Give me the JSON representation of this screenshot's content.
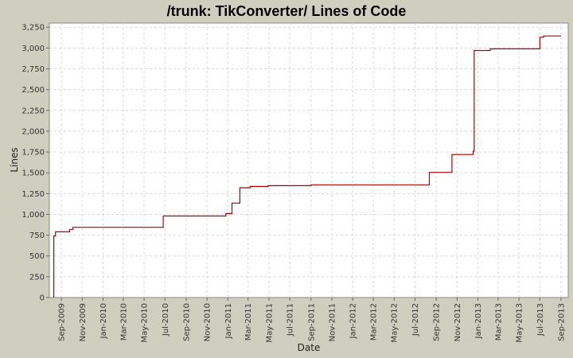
{
  "chart_data": {
    "type": "line",
    "title": "/trunk: TikConverter/ Lines of Code",
    "xlabel": "Date",
    "ylabel": "Lines",
    "ylim": [
      0,
      3300
    ],
    "xlim": [
      "2009-07-28",
      "2013-09-22"
    ],
    "y_ticks": [
      0,
      250,
      500,
      750,
      1000,
      1250,
      1500,
      1750,
      2000,
      2250,
      2500,
      2750,
      3000,
      3250
    ],
    "y_tick_labels": [
      "0",
      "250",
      "500",
      "750",
      "1,000",
      "1,250",
      "1,500",
      "1,750",
      "2,000",
      "2,250",
      "2,500",
      "2,750",
      "3,000",
      "3,250"
    ],
    "x_ticks": [
      "2009-09-01",
      "2009-11-01",
      "2010-01-01",
      "2010-03-01",
      "2010-05-01",
      "2010-07-01",
      "2010-09-01",
      "2010-11-01",
      "2011-01-01",
      "2011-03-01",
      "2011-05-01",
      "2011-07-01",
      "2011-09-01",
      "2011-11-01",
      "2012-01-01",
      "2012-03-01",
      "2012-05-01",
      "2012-07-01",
      "2012-09-01",
      "2012-11-01",
      "2013-01-01",
      "2013-03-01",
      "2013-05-01",
      "2013-07-01",
      "2013-09-01"
    ],
    "x_tick_labels": [
      "Sep-2009",
      "Nov-2009",
      "Jan-2010",
      "Mar-2010",
      "May-2010",
      "Jul-2010",
      "Sep-2010",
      "Nov-2010",
      "Jan-2011",
      "Mar-2011",
      "May-2011",
      "Jul-2011",
      "Sep-2011",
      "Nov-2011",
      "Jan-2012",
      "Mar-2012",
      "May-2012",
      "Jul-2012",
      "Sep-2012",
      "Nov-2012",
      "Jan-2013",
      "Mar-2013",
      "May-2013",
      "Jul-2013",
      "Sep-2013"
    ],
    "grid": true,
    "legend": false,
    "line_color": "#b00000",
    "plot_background": "#ffffff",
    "page_background": "#cfcfbf",
    "step": true,
    "points": [
      {
        "x": "2009-08-10",
        "y": 0
      },
      {
        "x": "2009-08-10",
        "y": 740
      },
      {
        "x": "2009-08-15",
        "y": 790
      },
      {
        "x": "2009-09-25",
        "y": 820
      },
      {
        "x": "2009-10-05",
        "y": 845
      },
      {
        "x": "2010-06-26",
        "y": 980
      },
      {
        "x": "2010-12-26",
        "y": 1010
      },
      {
        "x": "2011-01-13",
        "y": 1135
      },
      {
        "x": "2011-02-05",
        "y": 1320
      },
      {
        "x": "2011-03-07",
        "y": 1335
      },
      {
        "x": "2011-04-28",
        "y": 1345
      },
      {
        "x": "2011-09-01",
        "y": 1355
      },
      {
        "x": "2012-08-12",
        "y": 1505
      },
      {
        "x": "2012-10-17",
        "y": 1720
      },
      {
        "x": "2012-12-18",
        "y": 1760
      },
      {
        "x": "2012-12-21",
        "y": 2970
      },
      {
        "x": "2013-02-06",
        "y": 2990
      },
      {
        "x": "2013-07-01",
        "y": 3130
      },
      {
        "x": "2013-07-12",
        "y": 3145
      },
      {
        "x": "2013-09-01",
        "y": 3145
      }
    ]
  }
}
